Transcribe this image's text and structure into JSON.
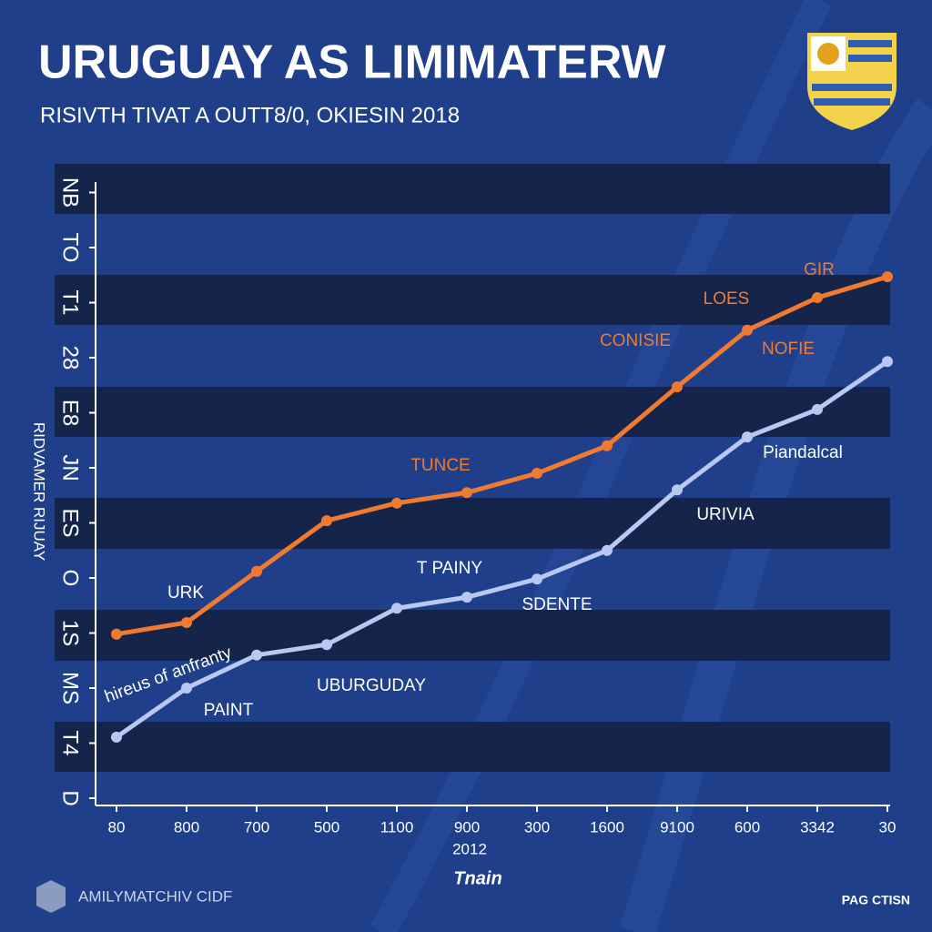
{
  "chart_data": {
    "type": "line",
    "title": "URUGUAY AS LIMIMATERW",
    "subtitle": "RISIVTH TIVAT A OUTT8/0, OKIESIN 2018",
    "y_label": "RIDVAMER RIJUAY",
    "x_sublabel": "2012",
    "x_label": "Tnain",
    "footer": "AMILYMATCHIV CIDF",
    "badge": "PAG CTISN",
    "categories": [
      "80",
      "800",
      "700",
      "500",
      "1100",
      "900",
      "300",
      "1600",
      "9100",
      "600",
      "3342",
      "30"
    ],
    "ylim": [
      0,
      11.2
    ],
    "yticks": [
      {
        "value": 0,
        "label": "D"
      },
      {
        "value": 1,
        "label": "T4"
      },
      {
        "value": 2,
        "label": "MS"
      },
      {
        "value": 3,
        "label": "1S"
      },
      {
        "value": 4,
        "label": "O"
      },
      {
        "value": 5,
        "label": "ES"
      },
      {
        "value": 6,
        "label": "JN"
      },
      {
        "value": 7,
        "label": "E8"
      },
      {
        "value": 8,
        "label": "28"
      },
      {
        "value": 9,
        "label": "T1"
      },
      {
        "value": 10,
        "label": "TO"
      },
      {
        "value": 11,
        "label": "NB"
      }
    ],
    "series": [
      {
        "color": "#f07a30",
        "values": [
          2.98,
          3.19,
          4.12,
          5.04,
          5.36,
          5.55,
          5.9,
          6.4,
          7.47,
          8.5,
          9.09,
          9.47
        ]
      },
      {
        "color": "#b8c8f0",
        "values": [
          1.11,
          2.0,
          2.6,
          2.79,
          3.45,
          3.65,
          3.98,
          4.5,
          5.6,
          6.56,
          7.06,
          7.93
        ]
      }
    ],
    "annotations": [
      "GIR",
      "LOES",
      "CONISIE",
      "NOFIE",
      "TUNCE",
      "Pіandalcal",
      "URIVIA",
      "T PAINY",
      "SDENTE",
      "UBURGUDAY",
      "URK",
      "PAINT",
      "hireus of anfranty"
    ]
  }
}
